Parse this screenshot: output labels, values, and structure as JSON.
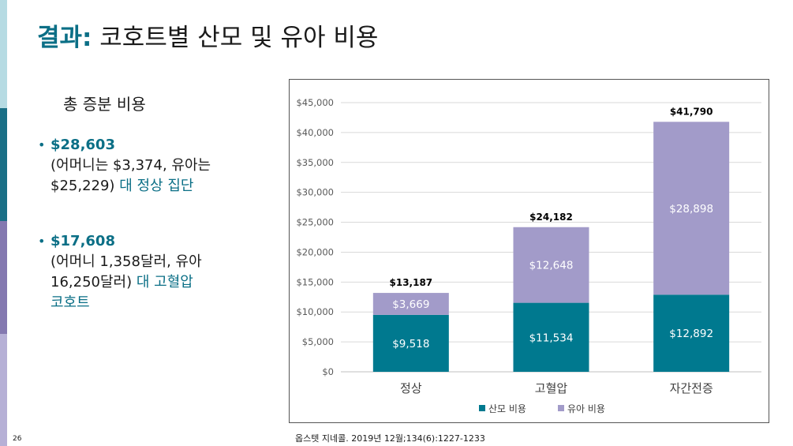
{
  "slide": {
    "title_accent": "결과:",
    "title_rest": " 코호트별 산모 및 유아 비용",
    "subheading": "총 증분 비용",
    "bullets": [
      {
        "amount": "$28,603",
        "lines": [
          "(어머니는 $3,374, 유아는",
          "$25,229)"
        ],
        "highlight": "대 정상 집단",
        "extra": ""
      },
      {
        "amount": "$17,608",
        "lines": [
          "(어머니 1,358달러, 유아",
          "16,250달러)"
        ],
        "highlight": "대 고혈압",
        "extra": "코호트"
      }
    ],
    "citation": "옵스텟 지네콜. 2019년 12월;134(6):1227-1233",
    "page_number": "26",
    "colors": {
      "accent": "#0b6f86",
      "maternal": "#00798f",
      "infant": "#a29bc9",
      "sidebar": [
        "#b6dbe3",
        "#1a6f86",
        "#8479b0",
        "#b6b0d6"
      ]
    }
  },
  "chart_data": {
    "type": "bar",
    "stacked": true,
    "categories": [
      "정상",
      "고혈압",
      "자간전증"
    ],
    "series": [
      {
        "name": "산모 비용",
        "values": [
          9518,
          11534,
          12892
        ],
        "labels": [
          "$9,518",
          "$11,534",
          "$12,892"
        ]
      },
      {
        "name": "유아 비용",
        "values": [
          3669,
          12648,
          28898
        ],
        "labels": [
          "$3,669",
          "$12,648",
          "$28,898"
        ]
      }
    ],
    "totals": [
      13187,
      24182,
      41790
    ],
    "total_labels": [
      "$13,187",
      "$24,182",
      "$41,790"
    ],
    "ylim": [
      0,
      45000
    ],
    "yticks": [
      "$0",
      "$5,000",
      "$10,000",
      "$15,000",
      "$20,000",
      "$25,000",
      "$30,000",
      "$35,000",
      "$40,000",
      "$45,000"
    ],
    "grid": true,
    "legend_position": "bottom"
  }
}
